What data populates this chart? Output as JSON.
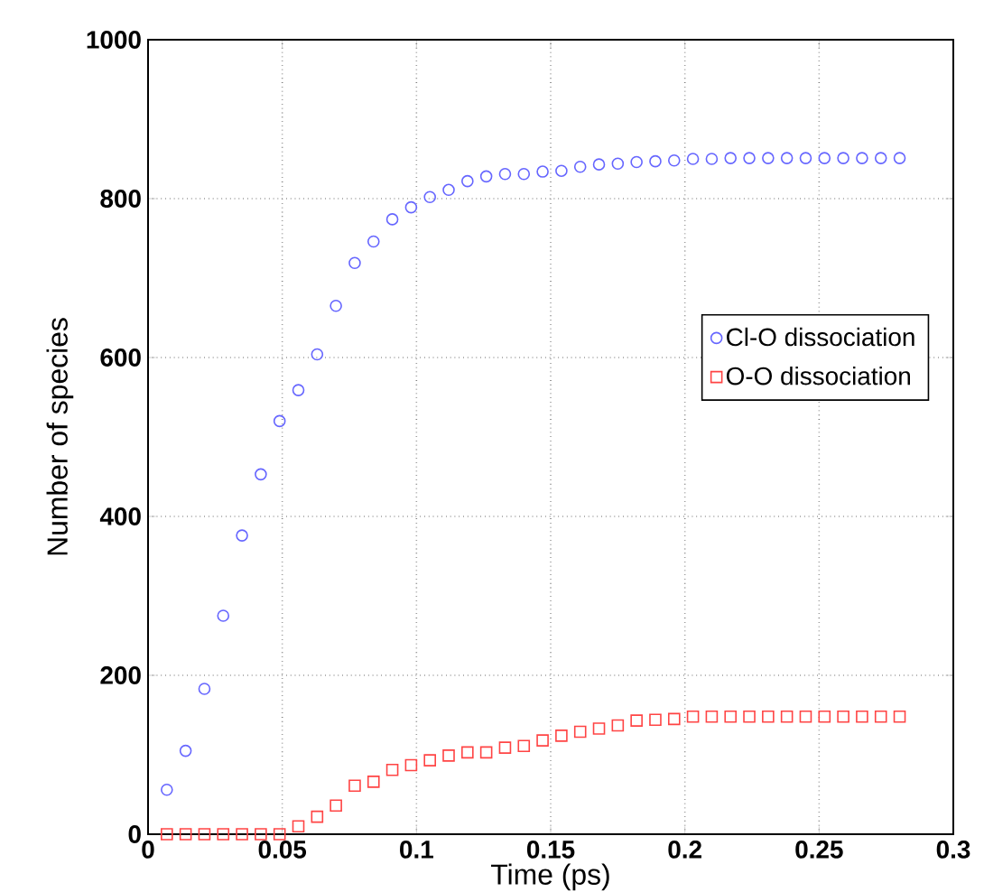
{
  "chart_data": {
    "type": "scatter",
    "xlabel": "Time (ps)",
    "ylabel": "Number of species",
    "x": [
      0.007,
      0.014,
      0.021,
      0.028,
      0.035,
      0.042,
      0.049,
      0.056,
      0.063,
      0.07,
      0.077,
      0.084,
      0.091,
      0.098,
      0.105,
      0.112,
      0.119,
      0.126,
      0.133,
      0.14,
      0.147,
      0.154,
      0.161,
      0.168,
      0.175,
      0.182,
      0.189,
      0.196,
      0.203,
      0.21,
      0.217,
      0.224,
      0.231,
      0.238,
      0.245,
      0.252,
      0.259,
      0.266,
      0.273,
      0.28
    ],
    "series": [
      {
        "name": "Cl-O dissociation",
        "color": "#6666ff",
        "marker": "circle",
        "values": [
          56,
          105,
          183,
          275,
          376,
          453,
          520,
          559,
          604,
          665,
          719,
          746,
          774,
          789,
          802,
          811,
          822,
          828,
          831,
          831,
          834,
          835,
          840,
          843,
          844,
          846,
          847,
          848,
          850,
          850,
          851,
          851,
          851,
          851,
          851,
          851,
          851,
          851,
          851,
          851
        ]
      },
      {
        "name": "O-O dissociation",
        "color": "#ff4444",
        "marker": "square",
        "values": [
          0,
          0,
          0,
          0,
          0,
          0,
          0,
          10,
          22,
          36,
          61,
          66,
          81,
          87,
          93,
          99,
          103,
          103,
          109,
          111,
          118,
          124,
          129,
          133,
          137,
          143,
          144,
          145,
          148,
          148,
          148,
          148,
          148,
          148,
          148,
          148,
          148,
          148,
          148,
          148
        ]
      }
    ],
    "xlim": [
      0,
      0.3
    ],
    "ylim": [
      0,
      1000
    ],
    "xticks": [
      0,
      0.05,
      0.1,
      0.15,
      0.2,
      0.25,
      0.3
    ],
    "yticks": [
      0,
      200,
      400,
      600,
      800,
      1000
    ],
    "grid": true,
    "legend": "right"
  }
}
